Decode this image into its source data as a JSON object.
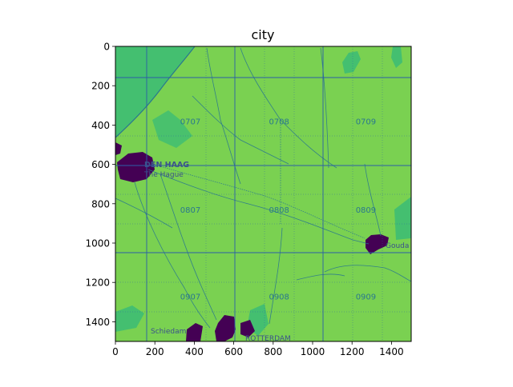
{
  "figure": {
    "title": "city",
    "x_ticks": [
      "0",
      "200",
      "400",
      "600",
      "800",
      "1000",
      "1200",
      "1400"
    ],
    "y_ticks": [
      "0",
      "200",
      "400",
      "600",
      "800",
      "1000",
      "1200",
      "1400"
    ]
  },
  "map": {
    "place_labels": [
      "DEN HAAG",
      "The Hague",
      "Gouda",
      "Schiedam",
      "ROTTERDAM"
    ],
    "grid_labels": [
      "0707",
      "0708",
      "0709",
      "0807",
      "0808",
      "0809",
      "0907",
      "0908",
      "0909"
    ],
    "colors": {
      "land": "#7ad151",
      "water": "#44bf70",
      "urban": "#440154",
      "road": "#2a788e",
      "grid": "#2c5ea8",
      "label": "#2a788e"
    }
  },
  "chart_data": {
    "type": "heatmap",
    "title": "city",
    "xlabel": "",
    "ylabel": "",
    "xlim": [
      0,
      1500
    ],
    "ylim": [
      1500,
      0
    ],
    "x_ticks": [
      0,
      200,
      400,
      600,
      800,
      1000,
      1200,
      1400
    ],
    "y_ticks": [
      0,
      200,
      400,
      600,
      800,
      1000,
      1200,
      1400
    ],
    "grid_lines_x": [
      160,
      610,
      1050
    ],
    "grid_lines_y": [
      160,
      610,
      1050
    ],
    "urban_areas": [
      {
        "name": "DEN HAAG",
        "x": 110,
        "y": 620
      },
      {
        "name": "Gouda",
        "x": 1320,
        "y": 1000
      },
      {
        "name": "Schiedam",
        "x": 380,
        "y": 1460
      },
      {
        "name": "ROTTERDAM",
        "x": 620,
        "y": 1450
      }
    ],
    "sheet_labels": [
      {
        "label": "0707",
        "x": 380,
        "y": 380
      },
      {
        "label": "0708",
        "x": 830,
        "y": 380
      },
      {
        "label": "0709",
        "x": 1270,
        "y": 380
      },
      {
        "label": "0807",
        "x": 380,
        "y": 830
      },
      {
        "label": "0808",
        "x": 830,
        "y": 830
      },
      {
        "label": "0809",
        "x": 1270,
        "y": 830
      },
      {
        "label": "0907",
        "x": 380,
        "y": 1270
      },
      {
        "label": "0908",
        "x": 830,
        "y": 1270
      },
      {
        "label": "0909",
        "x": 1270,
        "y": 1270
      }
    ]
  }
}
